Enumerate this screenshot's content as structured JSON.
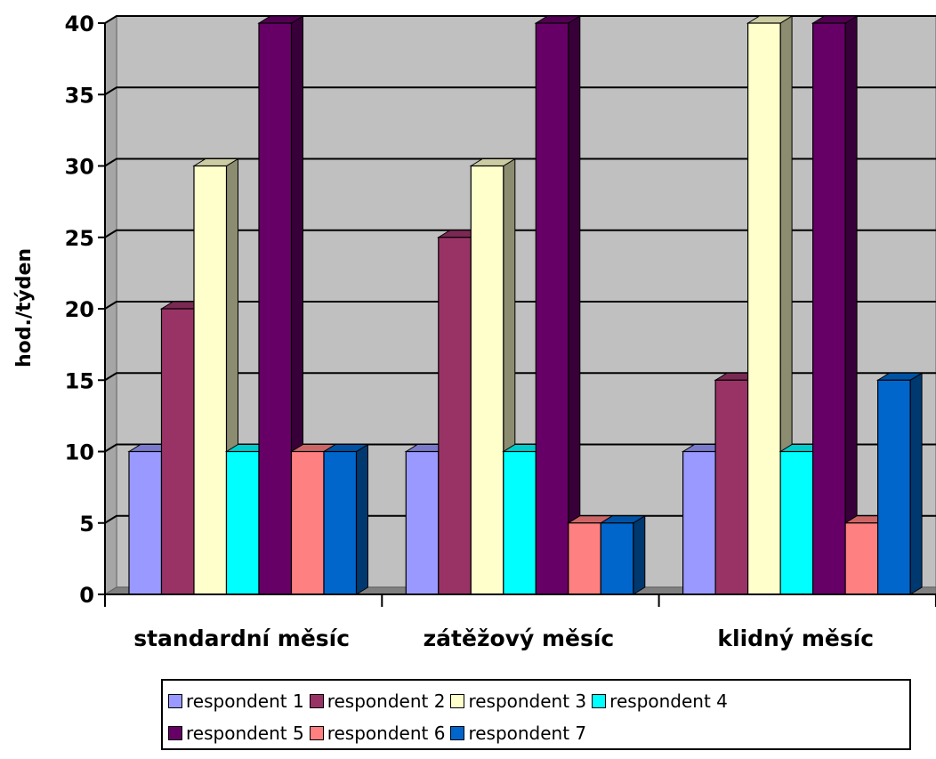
{
  "chart_data": {
    "type": "bar",
    "categories": [
      "standardní měsíc",
      "zátěžový měsíc",
      "klidný měsíc"
    ],
    "series": [
      {
        "name": "respondent 1",
        "values": [
          10,
          10,
          10
        ],
        "color": "#9999FF"
      },
      {
        "name": "respondent 2",
        "values": [
          20,
          25,
          15
        ],
        "color": "#993366"
      },
      {
        "name": "respondent 3",
        "values": [
          30,
          30,
          40
        ],
        "color": "#FFFFCC"
      },
      {
        "name": "respondent 4",
        "values": [
          10,
          10,
          10
        ],
        "color": "#00FFFF"
      },
      {
        "name": "respondent 5",
        "values": [
          40,
          40,
          40
        ],
        "color": "#660066"
      },
      {
        "name": "respondent 6",
        "values": [
          10,
          5,
          5
        ],
        "color": "#FF8080"
      },
      {
        "name": "respondent 7",
        "values": [
          10,
          5,
          15
        ],
        "color": "#0066CC"
      }
    ],
    "ylabel": "hod./týden",
    "ylim": [
      0,
      40
    ],
    "yticks": [
      "0",
      "5",
      "10",
      "15",
      "20",
      "25",
      "30",
      "35",
      "40"
    ],
    "grid": true,
    "legend_position": "bottom",
    "plot_background": "#C0C0C0"
  }
}
